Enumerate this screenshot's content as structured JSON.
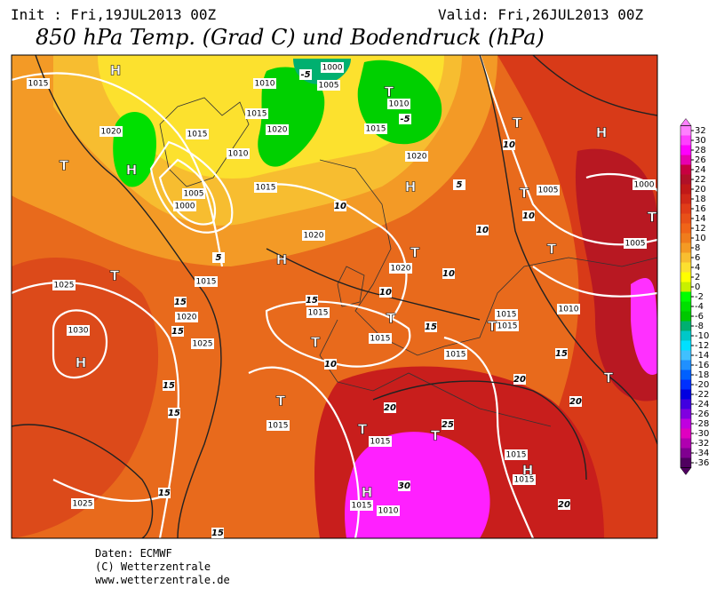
{
  "header": {
    "init": "Init : Fri,19JUL2013 00Z",
    "valid": "Valid: Fri,26JUL2013 00Z",
    "title": "850 hPa Temp. (Grad C) und Bodendruck (hPa)"
  },
  "colorbar": {
    "ticks": [
      32,
      30,
      28,
      26,
      24,
      22,
      20,
      18,
      16,
      14,
      12,
      10,
      8,
      6,
      4,
      2,
      0,
      -2,
      -4,
      -6,
      -8,
      -10,
      -12,
      -14,
      -16,
      -18,
      -20,
      -22,
      -24,
      -26,
      -28,
      -30,
      -32,
      -34,
      -36
    ],
    "colors": [
      "#ff80ff",
      "#ff40ff",
      "#ff00ff",
      "#e800b0",
      "#c80040",
      "#b01028",
      "#c01818",
      "#d02818",
      "#e03c18",
      "#e85018",
      "#f06418",
      "#f07c1c",
      "#f49a24",
      "#f8be30",
      "#fce030",
      "#ffff00",
      "#c8f000",
      "#00ff00",
      "#00e000",
      "#00c800",
      "#00b070",
      "#00c8c8",
      "#00e0ff",
      "#40c0ff",
      "#2090ff",
      "#0060ff",
      "#0030ff",
      "#0000e0",
      "#4000e0",
      "#8000e0",
      "#c000e0",
      "#e000c0",
      "#b000b0",
      "#800090",
      "#500060"
    ]
  },
  "map": {
    "labels": [
      "H",
      "1015",
      "1020",
      "1015",
      "H",
      "T",
      "1010",
      "1020",
      "1015",
      "1010",
      "1000",
      "1005",
      "T",
      "1010",
      "1015",
      "1020",
      "H",
      "1005",
      "1000",
      "1015",
      "1020",
      "H",
      "1015",
      "T",
      "1025",
      "1030",
      "H",
      "1020",
      "1025",
      "1015",
      "T",
      "T",
      "1015",
      "1020",
      "T",
      "1015",
      "1015",
      "T",
      "1015",
      "T",
      "1015",
      "T",
      "1015",
      "T",
      "1015",
      "1015",
      "H",
      "H",
      "1015",
      "1010",
      "1025",
      "T",
      "T",
      "1005",
      "T",
      "1005",
      "1010",
      "H",
      "1000",
      "T",
      "T"
    ],
    "temps": [
      "10",
      "10",
      "10",
      "10",
      "10",
      "10",
      "15",
      "15",
      "15",
      "15",
      "15",
      "15",
      "15",
      "15",
      "15",
      "20",
      "20",
      "20",
      "20",
      "25",
      "30",
      "10",
      "5",
      "-5",
      "-5",
      "5"
    ]
  },
  "footer": {
    "source": "Daten: ECMWF",
    "copyright": "(C) Wetterzentrale",
    "url": "www.wetterzentrale.de"
  }
}
